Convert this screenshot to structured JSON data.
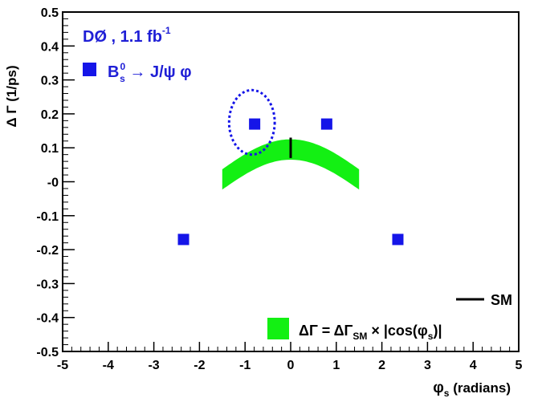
{
  "chart_data": {
    "type": "scatter",
    "xlim": [
      -5,
      5
    ],
    "ylim": [
      -0.5,
      0.5
    ],
    "x_ticks": [
      "-5",
      "-4",
      "-3",
      "-2",
      "-1",
      "0",
      "1",
      "2",
      "3",
      "4",
      "5"
    ],
    "y_ticks": [
      "-0.5",
      "-0.4",
      "-0.3",
      "-0.2",
      "-0.1",
      "-0",
      "0.1",
      "0.2",
      "0.3",
      "0.4",
      "0.5"
    ],
    "xlabel": {
      "base": "φ",
      "sub": "s",
      "rest": " (radians)"
    },
    "ylabel": "Δ Γ (1/ps)",
    "experiment_label": {
      "main": "DØ , 1.1 fb",
      "sup": "-1"
    },
    "channel_label": {
      "B": "B",
      "sub": "s",
      "sup": "0",
      "rest": " → J/ψ φ"
    },
    "points": [
      {
        "x": -0.79,
        "y": 0.17
      },
      {
        "x": 0.79,
        "y": 0.17
      },
      {
        "x": -2.35,
        "y": -0.17
      },
      {
        "x": 2.35,
        "y": -0.17
      }
    ],
    "band": {
      "dg_sm_center": 0.095,
      "half_width": 0.03,
      "phi_range": [
        -1.5,
        1.5
      ]
    },
    "sm_marker": {
      "x": 0,
      "y_low": 0.07,
      "y_high": 0.13
    },
    "contour": {
      "cx": -0.85,
      "cy": 0.175,
      "rx": 0.5,
      "ry": 0.095
    },
    "legend": {
      "sm_label": "SM",
      "band_label": {
        "pre": "ΔΓ = ΔΓ",
        "sub1": "SM",
        "mid": " × |cos(φ",
        "sub2": "s",
        "post": ")|"
      }
    },
    "colors": {
      "points": "#1515e8",
      "band": "#13f013",
      "contour": "#1515e8",
      "text_blue": "#1f1fd6",
      "axis": "#000000"
    }
  }
}
